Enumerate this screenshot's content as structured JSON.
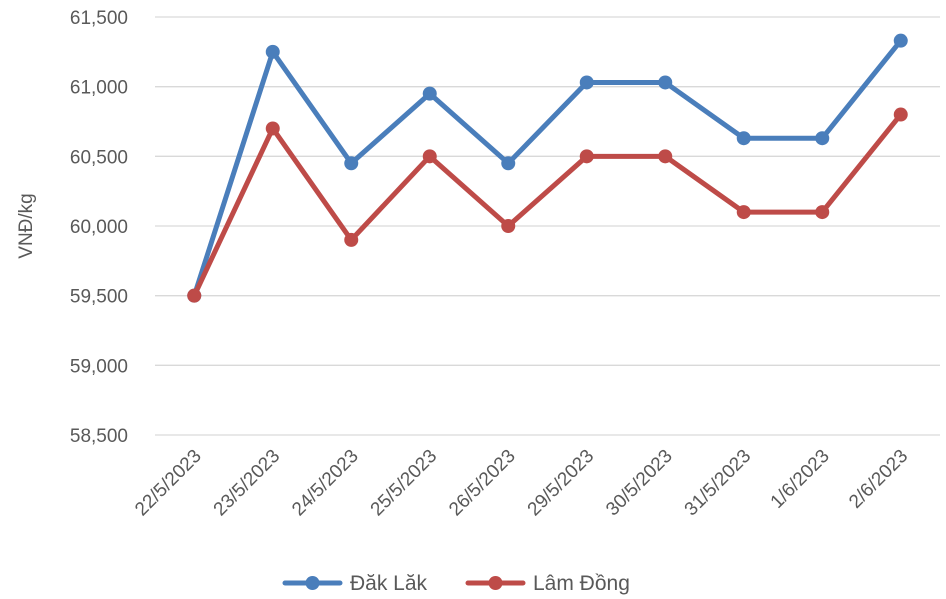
{
  "chart_data": {
    "type": "line",
    "ylabel": "VNĐ/kg",
    "ylim": [
      58500,
      61500
    ],
    "y_ticks": [
      "58,500",
      "59,000",
      "59,500",
      "60,000",
      "60,500",
      "61,000",
      "61,500"
    ],
    "grid": true,
    "legend": "bottom",
    "categories": [
      "22/5/2023",
      "23/5/2023",
      "24/5/2023",
      "25/5/2023",
      "26/5/2023",
      "29/5/2023",
      "30/5/2023",
      "31/5/2023",
      "1/6/2023",
      "2/6/2023"
    ],
    "series": [
      {
        "name": "Đăk Lăk",
        "color": "#4a7ebb",
        "values": [
          59500,
          61250,
          60450,
          60950,
          60450,
          61030,
          61030,
          60630,
          60630,
          61330
        ]
      },
      {
        "name": "Lâm Đồng",
        "color": "#be4b48",
        "values": [
          59500,
          60700,
          59900,
          60500,
          60000,
          60500,
          60500,
          60100,
          60100,
          60800
        ]
      }
    ]
  }
}
